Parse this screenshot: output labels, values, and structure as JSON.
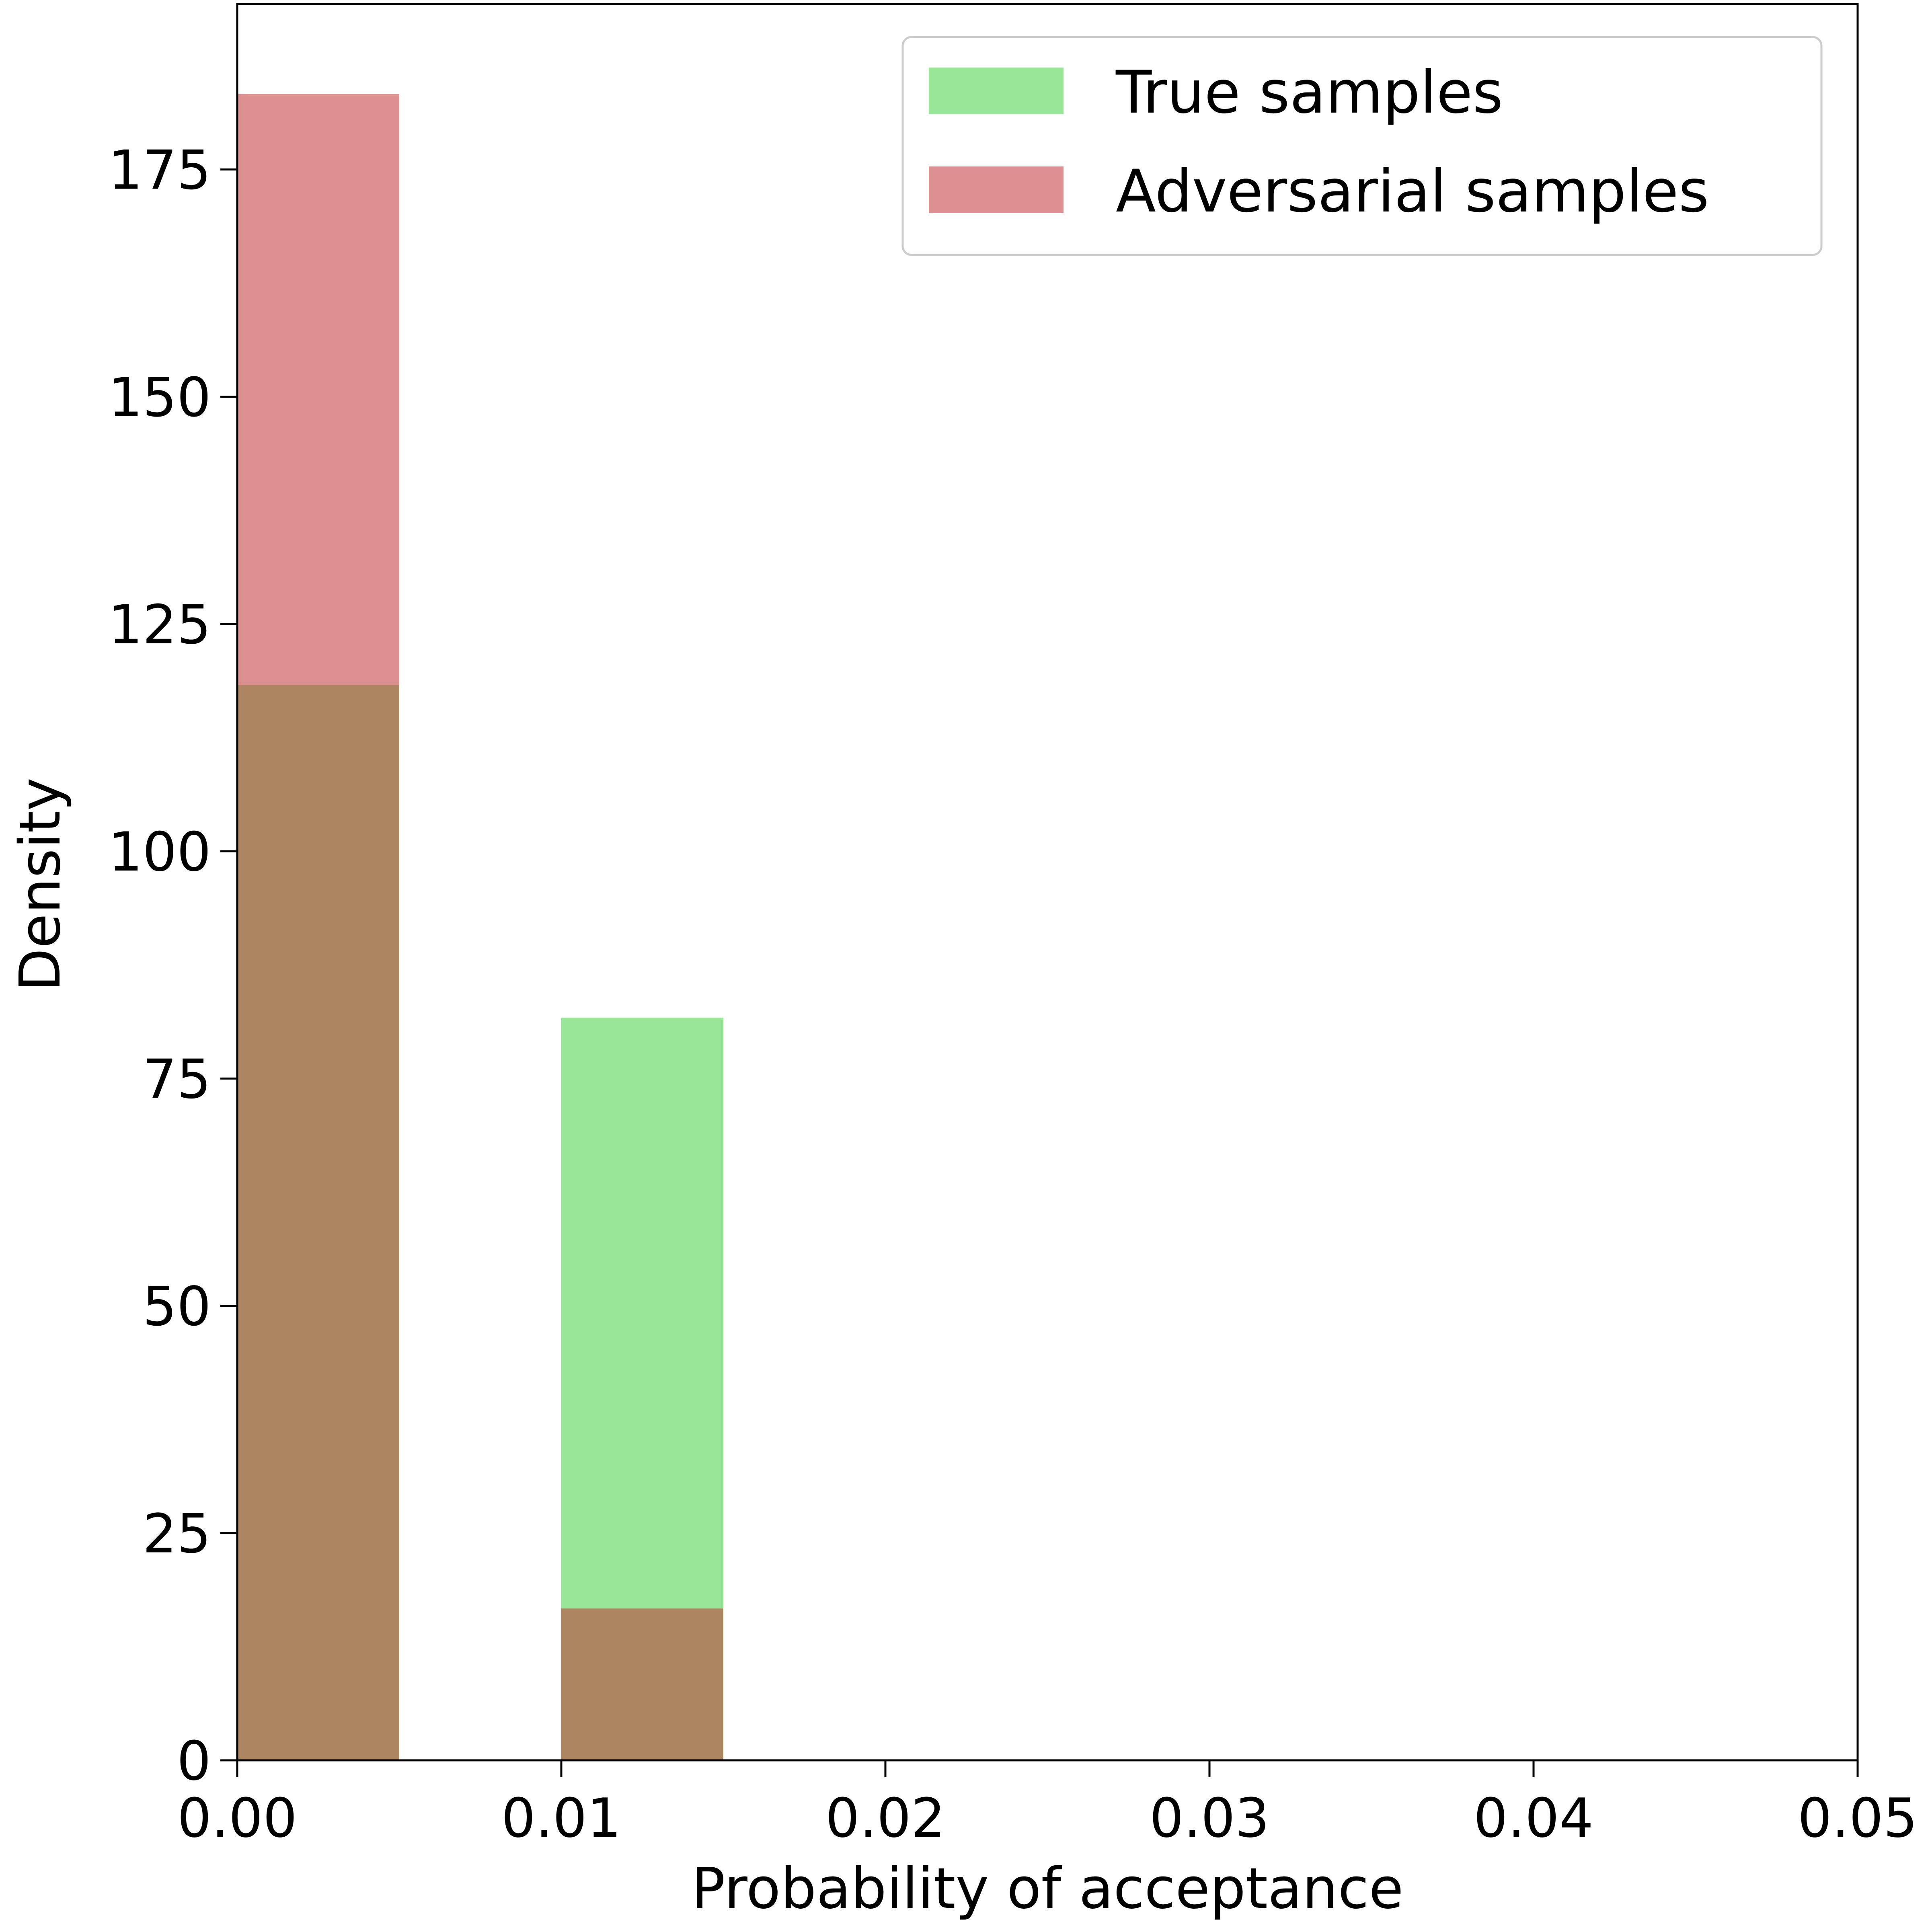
{
  "chart_data": {
    "type": "bar",
    "title": "",
    "xlabel": "Probability of acceptance",
    "ylabel": "Density",
    "xlim": [
      0.0,
      0.05
    ],
    "ylim": [
      0,
      193.2
    ],
    "grid": false,
    "legend_position": "top-right",
    "x_ticks": [
      "0.00",
      "0.01",
      "0.02",
      "0.03",
      "0.04",
      "0.05"
    ],
    "x_tick_values": [
      0.0,
      0.01,
      0.02,
      0.03,
      0.04,
      0.05
    ],
    "y_ticks": [
      "0",
      "25",
      "50",
      "75",
      "100",
      "125",
      "150",
      "175"
    ],
    "y_tick_values": [
      0,
      25,
      50,
      75,
      100,
      125,
      150,
      175
    ],
    "bin_edges": [
      0.0,
      0.005,
      0.01,
      0.015,
      0.02,
      0.025,
      0.03,
      0.035,
      0.04,
      0.045,
      0.05
    ],
    "series": [
      {
        "name": "True samples",
        "color": "#3fcf3f",
        "opacity": 0.53,
        "values": [
          118.3,
          0,
          81.7,
          0,
          0,
          0,
          0,
          0,
          0,
          0
        ]
      },
      {
        "name": "Adversarial samples",
        "color": "#bf2d2d",
        "opacity": 0.53,
        "values": [
          183.3,
          0,
          16.7,
          0,
          0,
          0,
          0,
          0,
          0,
          0
        ]
      }
    ]
  }
}
